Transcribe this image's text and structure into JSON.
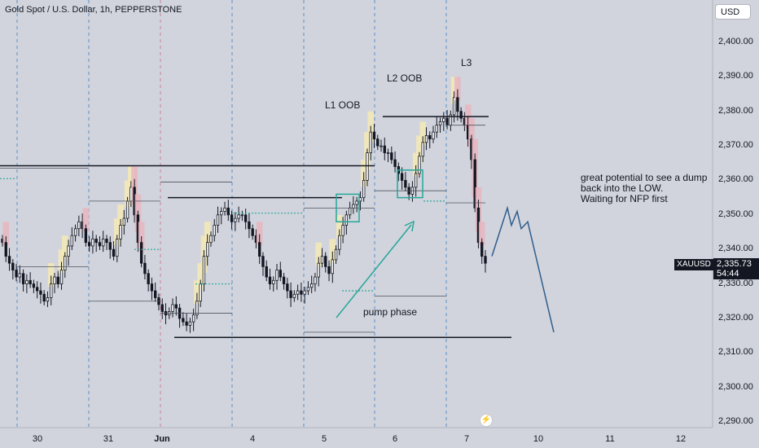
{
  "header": {
    "title": "Gold Spot / U.S. Dollar, 1h, PEPPERSTONE",
    "currency": "USD"
  },
  "price_axis": [
    "2,400.00",
    "2,390.00",
    "2,380.00",
    "2,370.00",
    "2,360.00",
    "2,350.00",
    "2,340.00",
    "2,330.00",
    "2,320.00",
    "2,310.00",
    "2,300.00",
    "2,290.00"
  ],
  "time_axis": [
    {
      "label": "30",
      "bold": false
    },
    {
      "label": "31",
      "bold": false
    },
    {
      "label": "Jun",
      "bold": true
    },
    {
      "label": "4",
      "bold": false
    },
    {
      "label": "5",
      "bold": false
    },
    {
      "label": "6",
      "bold": false
    },
    {
      "label": "7",
      "bold": false
    },
    {
      "label": "10",
      "bold": false
    },
    {
      "label": "11",
      "bold": false
    },
    {
      "label": "12",
      "bold": false
    }
  ],
  "annotations": {
    "l1": "L1 OOB",
    "l2": "L2 OOB",
    "l3": "L3",
    "pump": "pump phase",
    "note_lines": [
      "great potential to see a dump",
      "back into the LOW.",
      "Waiting for NFP first"
    ]
  },
  "last_price": {
    "symbol": "XAUUSD",
    "price": "2,335.73",
    "countdown": "54:44"
  },
  "colors": {
    "up": "#131722",
    "down": "#131722",
    "green": "#26a69a",
    "blue": "#2962ff",
    "projection": "#2f5e8e"
  },
  "chart_data": {
    "type": "candlestick",
    "instrument": "Gold Spot / U.S. Dollar",
    "interval": "1h",
    "ylim": [
      2288,
      2405
    ],
    "yticks": [
      2290,
      2300,
      2310,
      2320,
      2330,
      2340,
      2350,
      2360,
      2370,
      2380,
      2390,
      2400
    ],
    "levels": {
      "low_line": 2314.5,
      "l1_line": 2355,
      "top_left_line": 2364,
      "l2_line": 2378.5,
      "l3_high": 2388
    },
    "closes": [
      2342,
      2338,
      2336,
      2334,
      2332,
      2333,
      2330,
      2331,
      2330,
      2329,
      2328,
      2327,
      2325,
      2326,
      2330,
      2332,
      2330,
      2334,
      2338,
      2341,
      2344,
      2346,
      2348,
      2346,
      2342,
      2341,
      2343,
      2342,
      2341,
      2343,
      2342,
      2340,
      2338,
      2343,
      2347,
      2349,
      2354,
      2358,
      2350,
      2342,
      2336,
      2333,
      2330,
      2328,
      2326,
      2324,
      2322,
      2321,
      2322,
      2324,
      2323,
      2320,
      2319,
      2318,
      2319,
      2321,
      2325,
      2330,
      2338,
      2342,
      2344,
      2347,
      2350,
      2351,
      2352,
      2350,
      2348,
      2349,
      2350,
      2350,
      2348,
      2346,
      2344,
      2342,
      2338,
      2335,
      2332,
      2330,
      2331,
      2334,
      2332,
      2330,
      2328,
      2326,
      2327,
      2328,
      2327,
      2328,
      2329,
      2330,
      2332,
      2336,
      2338,
      2335,
      2333,
      2337,
      2340,
      2344,
      2347,
      2350,
      2352,
      2353,
      2354,
      2355,
      2360,
      2368,
      2374,
      2372,
      2370,
      2370,
      2368,
      2368,
      2366,
      2364,
      2362,
      2360,
      2358,
      2356,
      2358,
      2362,
      2367,
      2371,
      2373,
      2372,
      2374,
      2376,
      2377,
      2378,
      2376,
      2379,
      2384,
      2380,
      2378,
      2376,
      2372,
      2366,
      2352,
      2342,
      2338,
      2336
    ],
    "projection": [
      2338,
      2352,
      2347,
      2351,
      2346,
      2348,
      2316
    ]
  }
}
